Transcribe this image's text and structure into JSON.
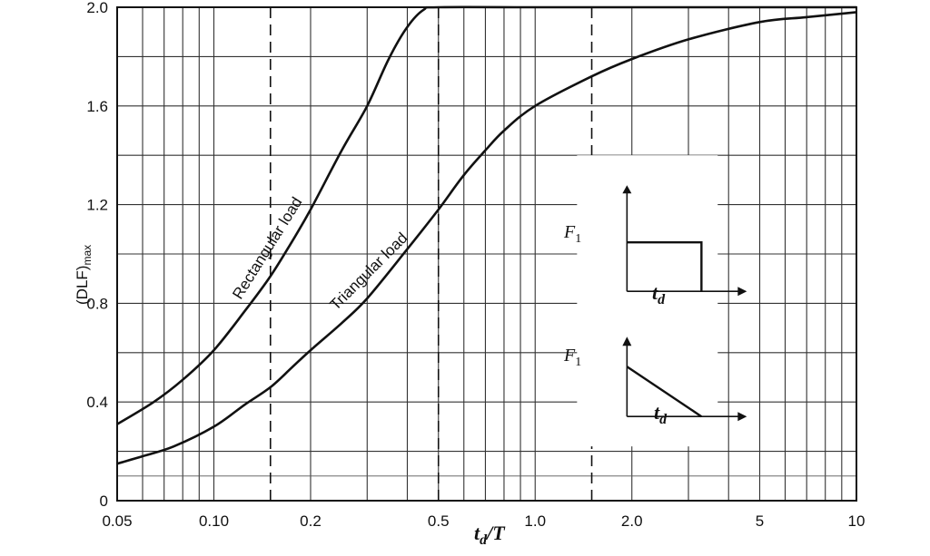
{
  "chart_data": {
    "type": "line",
    "x_scale": "log",
    "xlim": [
      0.05,
      10
    ],
    "ylim": [
      0,
      2.0
    ],
    "xlabel_main": "t",
    "xlabel_sub": "d",
    "xlabel_tail": "/T",
    "ylabel_main": "(DLF)",
    "ylabel_sub": "max",
    "x_ticks": [
      {
        "value": 0.05,
        "label": "0.05"
      },
      {
        "value": 0.1,
        "label": "0.10"
      },
      {
        "value": 0.2,
        "label": "0.2"
      },
      {
        "value": 0.5,
        "label": "0.5"
      },
      {
        "value": 1.0,
        "label": "1.0"
      },
      {
        "value": 2.0,
        "label": "2.0"
      },
      {
        "value": 5,
        "label": "5"
      },
      {
        "value": 10,
        "label": "10"
      }
    ],
    "y_ticks": [
      {
        "value": 0,
        "label": "0"
      },
      {
        "value": 0.4,
        "label": "0.4"
      },
      {
        "value": 0.8,
        "label": "0.8"
      },
      {
        "value": 1.2,
        "label": "1.2"
      },
      {
        "value": 1.6,
        "label": "1.6"
      },
      {
        "value": 2.0,
        "label": "2.0"
      }
    ],
    "y_minor_step": 0.2,
    "dashed_x": [
      0.15,
      0.5,
      1.5
    ],
    "grid": true,
    "series": [
      {
        "name": "Rectangular load",
        "x": [
          0.05,
          0.065,
          0.08,
          0.1,
          0.125,
          0.15,
          0.175,
          0.2,
          0.25,
          0.3,
          0.35,
          0.4,
          0.45,
          0.5,
          1,
          2,
          5,
          10
        ],
        "y": [
          0.31,
          0.4,
          0.49,
          0.61,
          0.77,
          0.91,
          1.05,
          1.18,
          1.42,
          1.6,
          1.79,
          1.92,
          1.99,
          2.0,
          2.0,
          2.0,
          2.0,
          2.0
        ]
      },
      {
        "name": "Triangular load",
        "x": [
          0.05,
          0.06,
          0.075,
          0.1,
          0.125,
          0.15,
          0.175,
          0.2,
          0.25,
          0.3,
          0.4,
          0.5,
          0.6,
          0.7,
          0.8,
          1.0,
          1.5,
          2.0,
          3.0,
          5.0,
          7.0,
          10.0
        ],
        "y": [
          0.15,
          0.18,
          0.22,
          0.3,
          0.39,
          0.46,
          0.54,
          0.61,
          0.72,
          0.82,
          1.02,
          1.18,
          1.32,
          1.42,
          1.5,
          1.6,
          1.72,
          1.79,
          1.87,
          1.94,
          1.96,
          1.98
        ]
      }
    ]
  },
  "inset": {
    "top_force_label": "F",
    "top_force_sub": "1",
    "top_time_label": "t",
    "top_time_sub": "d",
    "bottom_force_label": "F",
    "bottom_force_sub": "1",
    "bottom_time_label": "t",
    "bottom_time_sub": "d"
  }
}
